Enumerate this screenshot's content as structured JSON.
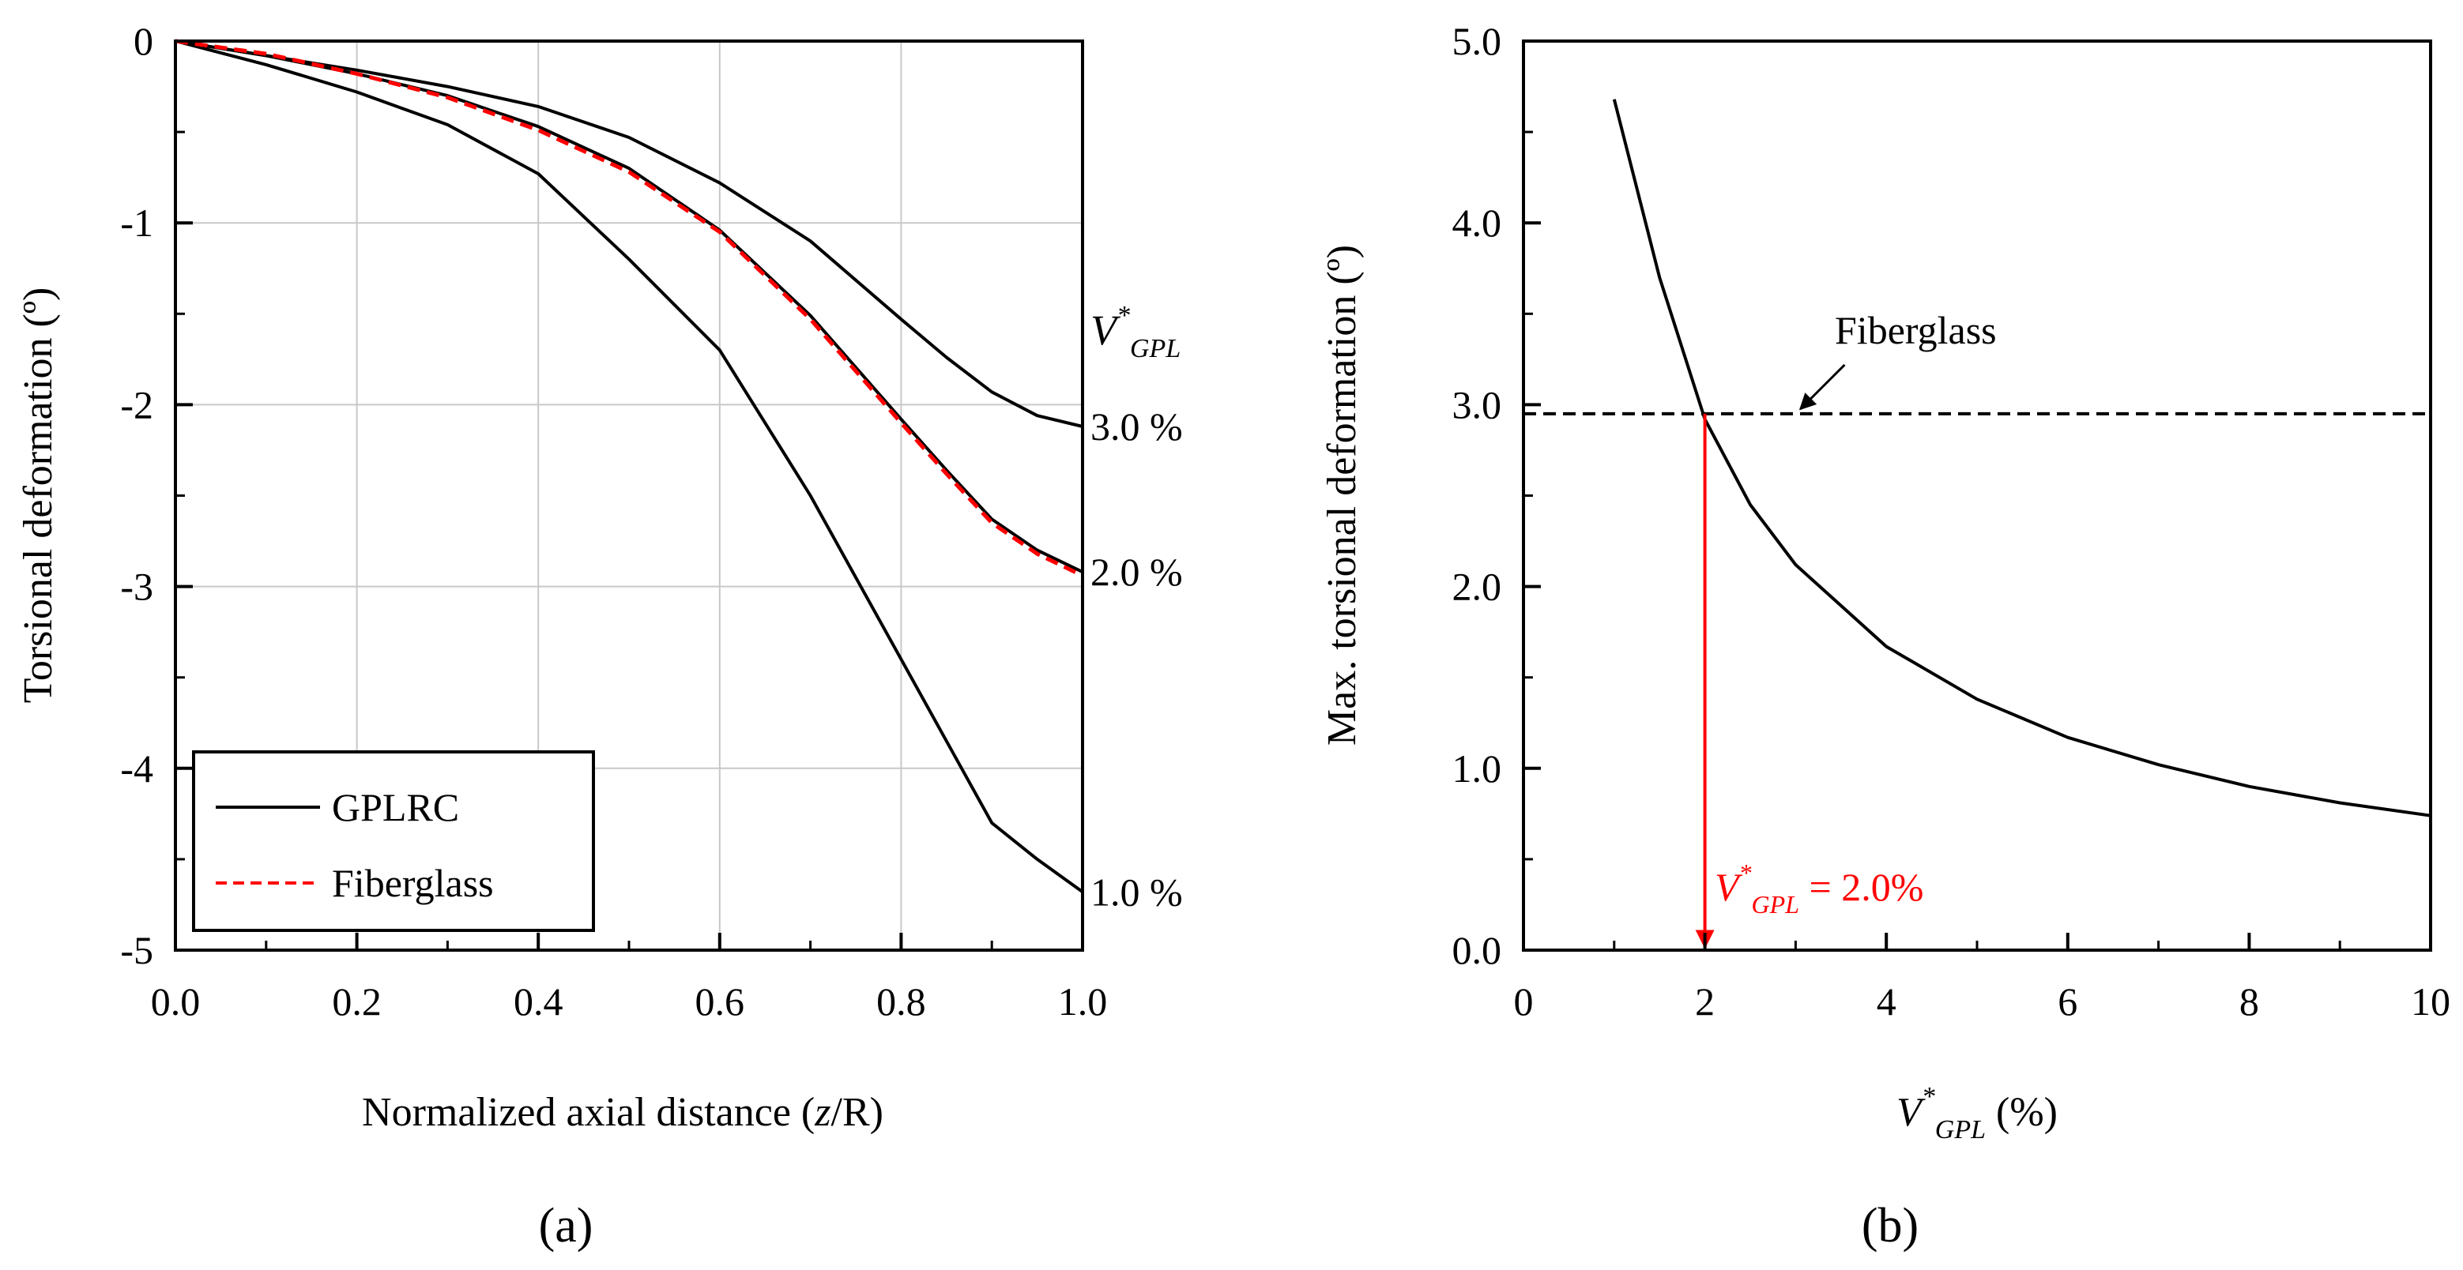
{
  "chart_data": [
    {
      "type": "line",
      "panel_label": "(a)",
      "xlabel": "Normalized axial distance (z/R)",
      "xlabel_parts": {
        "prefix": "Normalized axial distance (",
        "var": "z",
        "suffix": "/R)"
      },
      "ylabel": "Torsional deformation (º)",
      "xlim": [
        0,
        1
      ],
      "ylim": [
        -5,
        0
      ],
      "xticks": [
        "0.0",
        "0.2",
        "0.4",
        "0.6",
        "0.8",
        "1.0"
      ],
      "yticks": [
        "0",
        "-1",
        "-2",
        "-3",
        "-4",
        "-5"
      ],
      "grid": true,
      "legend": {
        "position": "bottom-left",
        "entries": [
          {
            "label": "GPLRC",
            "color": "#000000",
            "style": "solid"
          },
          {
            "label": "Fiberglass",
            "color": "#ff0000",
            "style": "dashed"
          }
        ]
      },
      "series_group_label": {
        "main": "V",
        "sup": "*",
        "sub": "GPL"
      },
      "series": [
        {
          "name": "GPLRC",
          "label": "3.0 %",
          "color": "#000000",
          "style": "solid",
          "x": [
            0,
            0.1,
            0.2,
            0.3,
            0.4,
            0.5,
            0.6,
            0.7,
            0.8,
            0.85,
            0.9,
            0.95,
            1.0
          ],
          "y": [
            0,
            -0.08,
            -0.16,
            -0.25,
            -0.36,
            -0.53,
            -0.78,
            -1.1,
            -1.53,
            -1.74,
            -1.93,
            -2.06,
            -2.12
          ]
        },
        {
          "name": "GPLRC",
          "label": "2.0 %",
          "color": "#000000",
          "style": "solid",
          "x": [
            0,
            0.1,
            0.2,
            0.3,
            0.4,
            0.5,
            0.6,
            0.7,
            0.8,
            0.85,
            0.9,
            0.95,
            1.0
          ],
          "y": [
            0,
            -0.08,
            -0.18,
            -0.3,
            -0.47,
            -0.7,
            -1.04,
            -1.51,
            -2.08,
            -2.36,
            -2.63,
            -2.8,
            -2.92
          ]
        },
        {
          "name": "GPLRC",
          "label": "1.0 %",
          "color": "#000000",
          "style": "solid",
          "x": [
            0,
            0.1,
            0.2,
            0.3,
            0.4,
            0.5,
            0.6,
            0.7,
            0.8,
            0.85,
            0.9,
            0.95,
            1.0
          ],
          "y": [
            0,
            -0.13,
            -0.28,
            -0.46,
            -0.73,
            -1.2,
            -1.7,
            -2.5,
            -3.4,
            -3.85,
            -4.3,
            -4.5,
            -4.68
          ]
        },
        {
          "name": "Fiberglass",
          "label": "",
          "color": "#ff0000",
          "style": "dashed",
          "x": [
            0,
            0.1,
            0.2,
            0.3,
            0.4,
            0.5,
            0.6,
            0.7,
            0.8,
            0.85,
            0.9,
            0.95,
            1.0
          ],
          "y": [
            0,
            -0.07,
            -0.18,
            -0.31,
            -0.49,
            -0.72,
            -1.05,
            -1.53,
            -2.1,
            -2.38,
            -2.65,
            -2.82,
            -2.94
          ]
        }
      ]
    },
    {
      "type": "line",
      "panel_label": "(b)",
      "xlabel": "V*GPL (%)",
      "xlabel_parts": {
        "main": "V",
        "sup": "*",
        "sub": "GPL",
        "suffix": " (%)"
      },
      "ylabel": "Max. torsional deformation (º)",
      "xlim": [
        0,
        10
      ],
      "ylim": [
        0,
        5
      ],
      "xticks": [
        "0",
        "2",
        "4",
        "6",
        "8",
        "10"
      ],
      "yticks": [
        "0.0",
        "1.0",
        "2.0",
        "3.0",
        "4.0",
        "5.0"
      ],
      "grid": false,
      "series": [
        {
          "name": "GPLRC",
          "color": "#000000",
          "style": "solid",
          "x": [
            1,
            1.5,
            2,
            2.5,
            3,
            4,
            5,
            6,
            7,
            8,
            9,
            10
          ],
          "y": [
            4.68,
            3.7,
            2.92,
            2.45,
            2.12,
            1.67,
            1.38,
            1.17,
            1.02,
            0.9,
            0.81,
            0.74
          ]
        },
        {
          "name": "Fiberglass",
          "color": "#000000",
          "style": "dashed",
          "x": [
            0,
            10
          ],
          "y": [
            2.95,
            2.95
          ]
        }
      ],
      "annotations": [
        {
          "text": "Fiberglass",
          "target_x": 3.0,
          "target_y": 2.95
        },
        {
          "text": "V*GPL = 2.0%",
          "parts": {
            "main": "V",
            "sup": "*",
            "sub": "GPL",
            "suffix": " = 2.0%"
          },
          "color": "#ff0000",
          "x": 2.0,
          "y_from": 2.95,
          "y_to": 0
        }
      ]
    }
  ]
}
